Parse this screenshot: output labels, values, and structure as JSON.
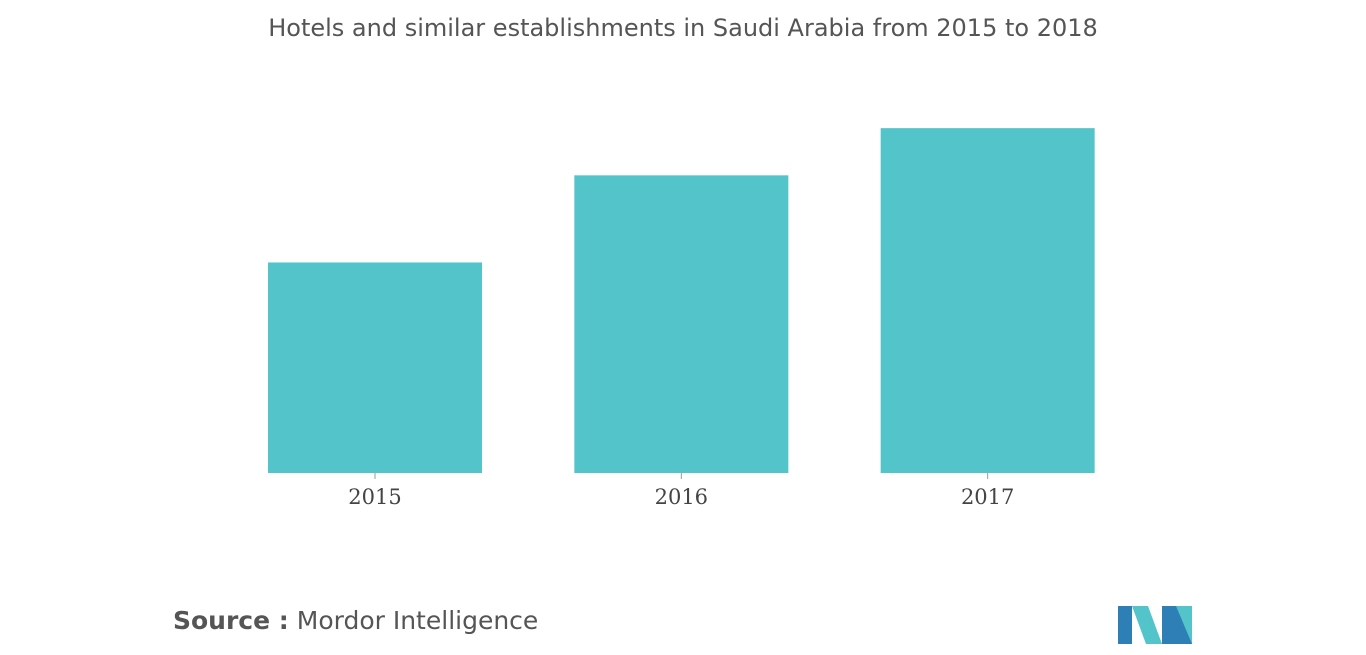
{
  "chart_data": {
    "type": "bar",
    "title": "Hotels and similar establishments in Saudi Arabia from 2015 to 2018",
    "categories": [
      "2015",
      "2016",
      "2017"
    ],
    "values": [
      58,
      82,
      95
    ],
    "ylim": [
      0,
      100
    ],
    "xlabel": "",
    "ylabel": "",
    "grid": false,
    "legend": "none",
    "bar_color": "#52c4ca"
  },
  "source": {
    "label": "Source :",
    "value": "Mordor Intelligence"
  },
  "logo": {
    "icon": "mordor-intelligence-logo",
    "colors": [
      "#2d7fb5",
      "#52c4ca"
    ]
  }
}
